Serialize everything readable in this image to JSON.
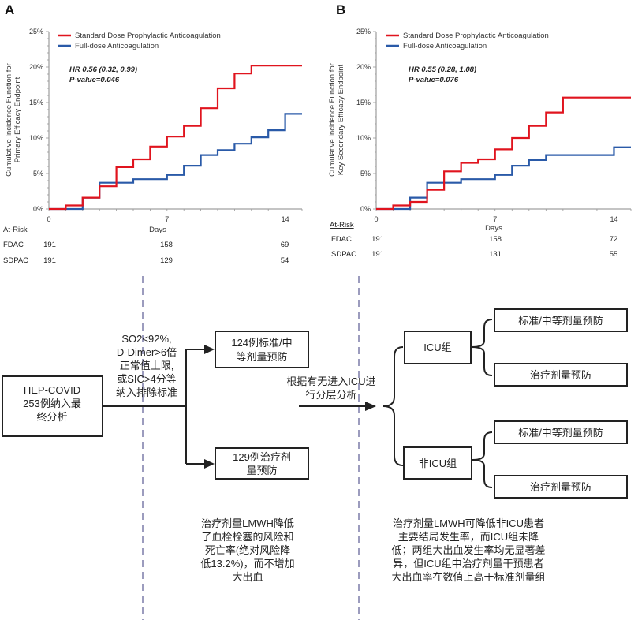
{
  "chart_data": [
    {
      "panel_label": "A",
      "type": "line",
      "step": true,
      "ylabel": [
        "Cumulative Incidence Function for",
        "Primary Efficacy Endpoint"
      ],
      "xlabel": "Days",
      "xlim": [
        0,
        15
      ],
      "ylim": [
        0,
        25
      ],
      "x_ticks": [
        0,
        7,
        14
      ],
      "y_ticks": [
        "0%",
        "5%",
        "10%",
        "15%",
        "20%",
        "25%"
      ],
      "legend_position": "top-left",
      "annotation": [
        "HR 0.56 (0.32, 0.99)",
        "P-value=0.046"
      ],
      "series": [
        {
          "name": "Standard Dose Prophylactic Anticoagulation",
          "color": "#e0141e",
          "x": [
            0,
            1,
            2,
            3,
            4,
            5,
            6,
            7,
            8,
            9,
            10,
            11,
            12,
            15
          ],
          "y": [
            0,
            0.5,
            1.6,
            3.2,
            5.9,
            7.0,
            8.8,
            10.2,
            11.7,
            14.2,
            17.0,
            19.1,
            20.2,
            20.2
          ]
        },
        {
          "name": "Full-dose Anticoagulation",
          "color": "#2a5aa8",
          "x": [
            0,
            2,
            3,
            5,
            7,
            8,
            9,
            10,
            11,
            12,
            13,
            14,
            15
          ],
          "y": [
            0,
            1.6,
            3.7,
            4.2,
            4.8,
            6.1,
            7.6,
            8.3,
            9.2,
            10.1,
            11.1,
            13.4,
            13.4
          ]
        }
      ],
      "at_risk": {
        "header": "At-Risk",
        "days": [
          0,
          7,
          14
        ],
        "rows": [
          {
            "label": "FDAC",
            "values": [
              "191",
              "158",
              "69"
            ]
          },
          {
            "label": "SDPAC",
            "values": [
              "191",
              "129",
              "54"
            ]
          }
        ]
      }
    },
    {
      "panel_label": "B",
      "type": "line",
      "step": true,
      "ylabel": [
        "Cumulative Incidence Function for",
        "Key Secondary Efficacy Endpoint"
      ],
      "xlabel": "Days",
      "xlim": [
        0,
        15
      ],
      "ylim": [
        0,
        25
      ],
      "x_ticks": [
        0,
        7,
        14
      ],
      "y_ticks": [
        "0%",
        "5%",
        "10%",
        "15%",
        "20%",
        "25%"
      ],
      "legend_position": "top-left",
      "annotation": [
        "HR 0.55 (0.28, 1.08)",
        "P-value=0.076"
      ],
      "series": [
        {
          "name": "Standard Dose Prophylactic Anticoagulation",
          "color": "#e0141e",
          "x": [
            0,
            1,
            2,
            3,
            4,
            5,
            6,
            7,
            8,
            9,
            10,
            11,
            15
          ],
          "y": [
            0,
            0.5,
            1.0,
            2.7,
            5.3,
            6.5,
            7.0,
            8.4,
            10.0,
            11.7,
            13.6,
            15.7,
            15.7
          ]
        },
        {
          "name": "Full-dose Anticoagulation",
          "color": "#2a5aa8",
          "x": [
            0,
            2,
            3,
            5,
            7,
            8,
            9,
            10,
            14,
            15
          ],
          "y": [
            0,
            1.6,
            3.7,
            4.2,
            4.8,
            6.1,
            6.9,
            7.6,
            8.7,
            8.7
          ]
        }
      ],
      "at_risk": {
        "header": "At-Risk",
        "days": [
          0,
          7,
          14
        ],
        "rows": [
          {
            "label": "FDAC",
            "values": [
              "191",
              "158",
              "72"
            ]
          },
          {
            "label": "SDPAC",
            "values": [
              "191",
              "131",
              "55"
            ]
          }
        ]
      }
    }
  ],
  "flowchart": {
    "start_box": [
      "HEP-COVID",
      "253例纳入最",
      "终分析"
    ],
    "criteria": [
      "SO2<92%,",
      "D-Dimer>6倍",
      "正常值上限,",
      "或SIC>4分等",
      "纳入排除标准"
    ],
    "group_standard": [
      "124例标准/中",
      "等剂量预防"
    ],
    "group_therapeutic": [
      "129例治疗剂",
      "量预防"
    ],
    "stratify_label": [
      "根据有无进入ICU进",
      "行分层分析"
    ],
    "icu_box": "ICU组",
    "non_icu_box": "非ICU组",
    "icu_standard": "标准/中等剂量预防",
    "icu_therapeutic": "治疗剂量预防",
    "non_icu_standard": "标准/中等剂量预防",
    "non_icu_therapeutic": "治疗剂量预防",
    "conclusion_left": [
      "治疗剂量LMWH降低",
      "了血栓栓塞的风险和",
      "死亡率(绝对风险降",
      "低13.2%)，而不增加",
      "大出血"
    ],
    "conclusion_right": [
      "治疗剂量LMWH可降低非ICU患者",
      "主要结局发生率，而ICU组未降",
      "低；两组大出血发生率均无显著差",
      "异，但ICU组中治疗剂量干预患者",
      "大出血率在数值上高于标准剂量组"
    ]
  }
}
